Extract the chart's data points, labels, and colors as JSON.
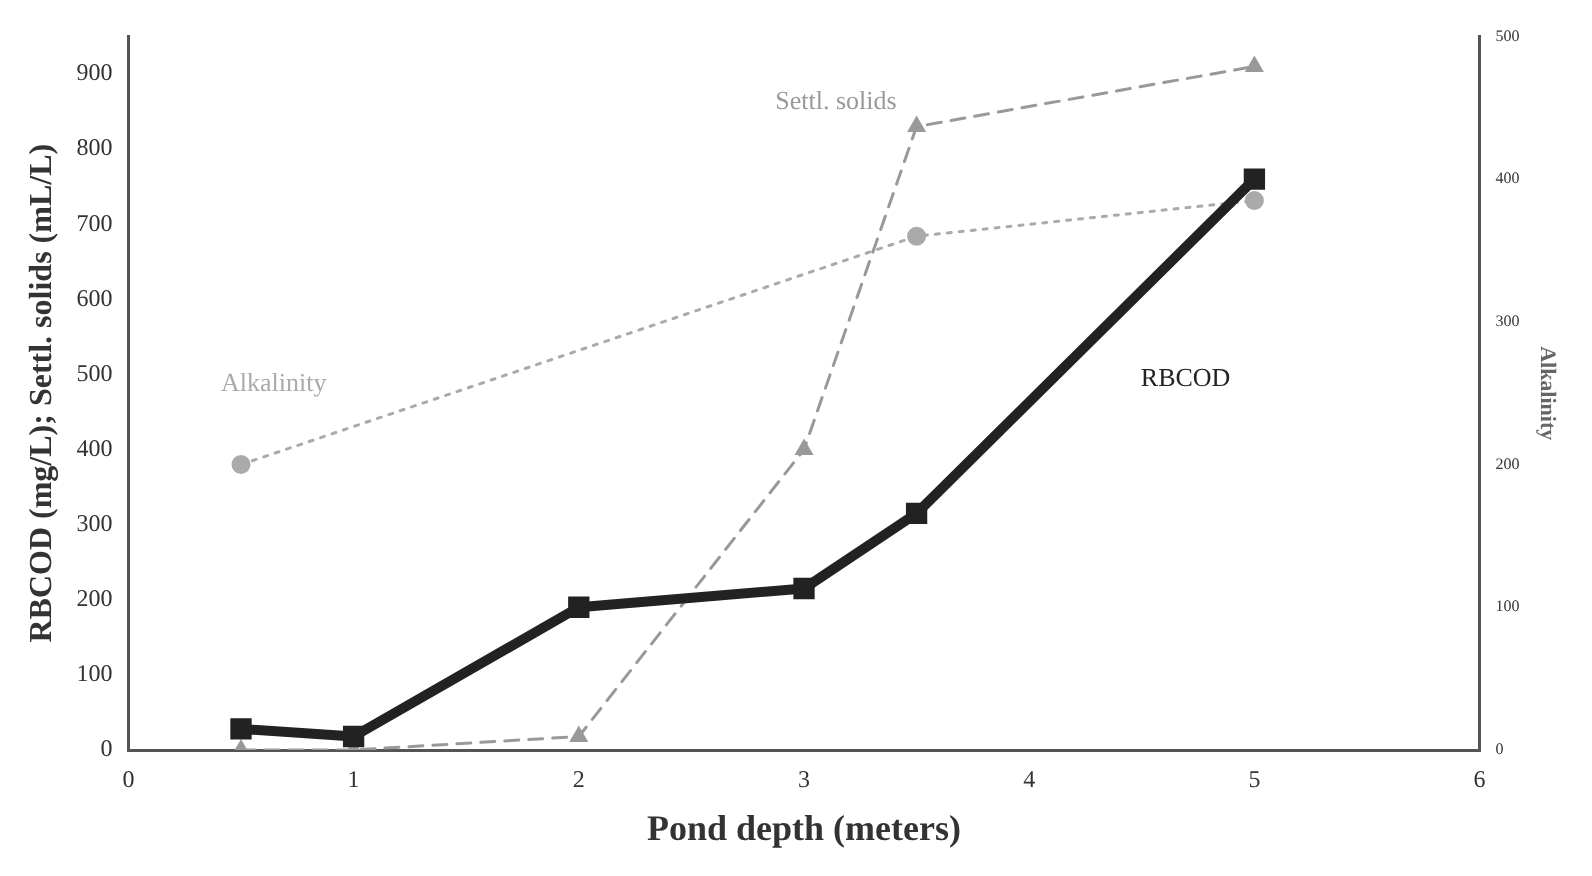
{
  "chart_data": {
    "type": "line",
    "xlabel": "Pond depth (meters)",
    "ylabel": "RBCOD (mg/L); Settl. solids (mL/L)",
    "y2label": "Alkalinity",
    "xlim": [
      0,
      6
    ],
    "xticks": [
      0,
      1,
      2,
      3,
      4,
      5,
      6
    ],
    "ylim": [
      0,
      950
    ],
    "yticks": [
      0,
      100,
      200,
      300,
      400,
      500,
      600,
      700,
      800,
      900
    ],
    "y2lim": [
      0,
      500
    ],
    "y2ticks": [
      0,
      100,
      200,
      300,
      400,
      500
    ],
    "grid": false,
    "legend": false,
    "series": [
      {
        "name": "RBCOD",
        "color": "#222222",
        "x": [
          0.5,
          1,
          2,
          3,
          3.5,
          5
        ],
        "values": [
          28,
          18,
          190,
          215,
          315,
          760
        ],
        "marker": "square",
        "line_style": "solid"
      },
      {
        "name": "Settl. solids",
        "color": "#999999",
        "x": [
          0.5,
          1,
          2,
          3,
          3.5,
          5
        ],
        "values": [
          0,
          0,
          18,
          400,
          830,
          910
        ],
        "marker": "triangle",
        "line_style": "dashed"
      },
      {
        "name": "Alkalinity",
        "color": "#aaaaaa",
        "axis": "y2",
        "x": [
          0.5,
          3.5,
          5
        ],
        "values": [
          200,
          360,
          385
        ],
        "marker": "circle",
        "line_style": "dotted"
      }
    ]
  }
}
